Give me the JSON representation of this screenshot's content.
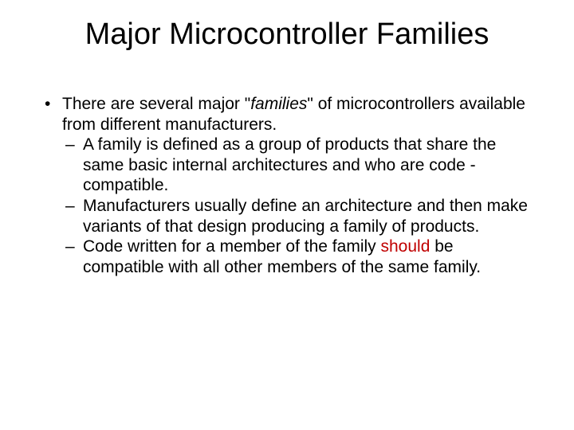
{
  "title": "Major Microcontroller Families",
  "bullet1_pre": "There are several major \"",
  "bullet1_em": "families",
  "bullet1_post": "\" of microcontrollers available from different manufacturers.",
  "sub1": "A family is defined as a group of products that share the same basic internal architectures and who are code -compatible.",
  "sub2": "Manufacturers usually define an architecture and then make variants of that design producing a family of products.",
  "sub3_pre": "Code written for a member of the family ",
  "sub3_em": "should",
  "sub3_post": " be compatible with all other members of the same family."
}
